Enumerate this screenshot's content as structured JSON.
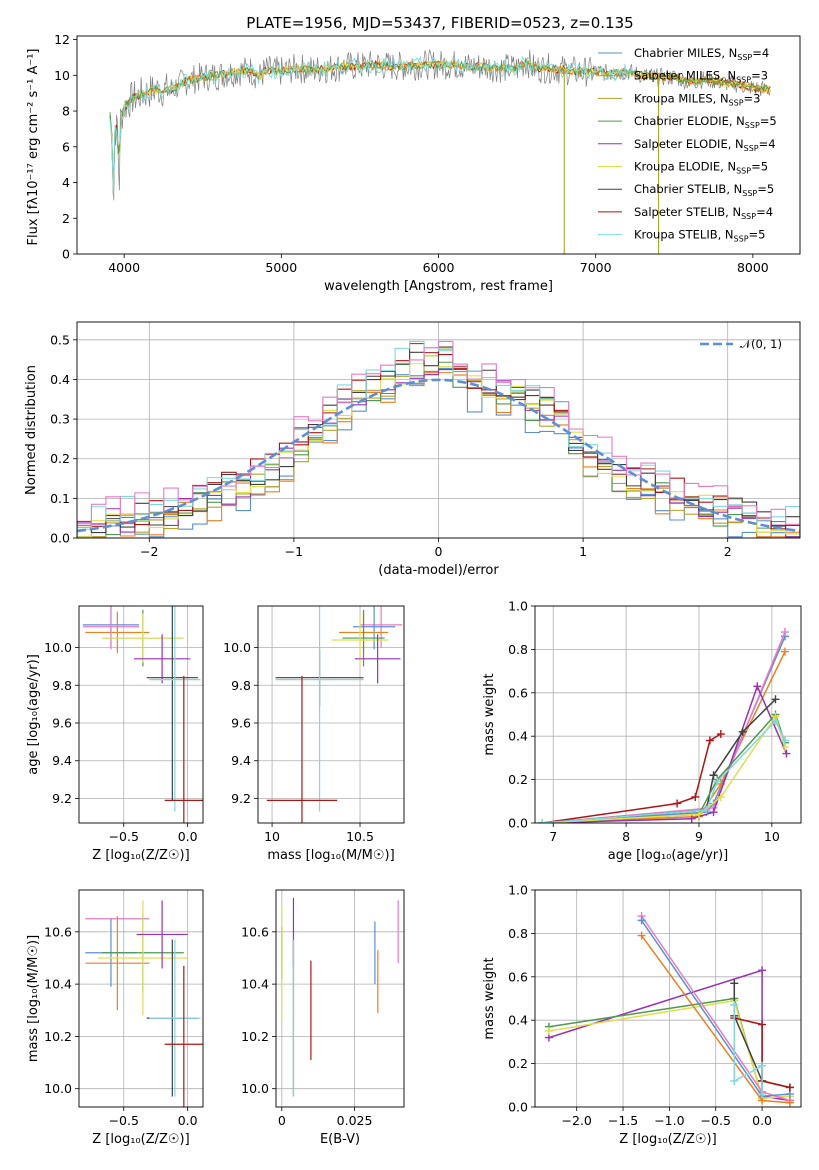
{
  "title": "PLATE=1956, MJD=53437, FIBERID=0523, z=0.135",
  "colors": {
    "chabrier_miles": "#5b8fd6",
    "salpeter_miles": "#f07f1e",
    "kroupa_miles": "#b5a32a",
    "chabrier_elodie": "#4e9a4e",
    "salpeter_elodie": "#9b30b5",
    "kroupa_elodie": "#dfe04a",
    "chabrier_stelib": "#404040",
    "salpeter_stelib": "#b01515",
    "kroupa_stelib": "#7fd9dc",
    "pink": "#e87bc4",
    "data": "#808080",
    "normal": "#5b8fd6"
  },
  "chart_data": [
    {
      "type": "line",
      "title": "PLATE=1956, MJD=53437, FIBERID=0523, z=0.135",
      "xlabel": "wavelength [Angstrom, rest frame]",
      "ylabel": "Flux [fλ10⁻¹⁷ erg cm⁻² s⁻¹ A⁻¹]",
      "xlim": [
        3700,
        8300
      ],
      "ylim": [
        0,
        12.2
      ],
      "xticks": [
        4000,
        5000,
        6000,
        7000,
        8000
      ],
      "yticks": [
        0,
        2,
        4,
        6,
        8,
        10,
        12
      ],
      "grid": false,
      "legend_position": "right",
      "data_range": [
        3910,
        8110
      ],
      "spectrum_anchors": {
        "x": [
          3910,
          3915,
          3925,
          3933,
          3940,
          3960,
          3968,
          3975,
          4000,
          4050,
          4100,
          4200,
          4300,
          4400,
          4500,
          4600,
          4700,
          4800,
          4861,
          4900,
          5000,
          5100,
          5200,
          5300,
          5400,
          5500,
          5600,
          5700,
          5800,
          5900,
          6000,
          6100,
          6200,
          6300,
          6400,
          6500,
          6563,
          6600,
          6700,
          6800,
          6900,
          7000,
          7100,
          7200,
          7300,
          7400,
          7500,
          7600,
          7700,
          7800,
          7900,
          8000,
          8100
        ],
        "y": [
          7.8,
          7.0,
          6.5,
          2.5,
          6.8,
          7.2,
          2.6,
          7.5,
          8.2,
          8.7,
          8.9,
          9.2,
          9.2,
          9.7,
          9.9,
          10.0,
          10.2,
          10.3,
          9.9,
          10.3,
          10.2,
          10.4,
          10.3,
          10.4,
          10.5,
          10.5,
          10.6,
          10.5,
          10.5,
          10.6,
          10.6,
          10.6,
          10.5,
          10.5,
          10.4,
          10.4,
          10.8,
          10.4,
          10.4,
          10.3,
          10.2,
          10.2,
          10.1,
          10.2,
          10.0,
          9.9,
          9.9,
          9.6,
          9.8,
          9.6,
          9.5,
          9.3,
          9.2
        ]
      },
      "spikes": [
        {
          "x": 6800,
          "y": 0
        },
        {
          "x": 7400,
          "y": 0
        }
      ],
      "legend": [
        {
          "label": "Chabrier MILES, N",
          "n": "4",
          "color_key": "chabrier_miles"
        },
        {
          "label": "Salpeter MILES, N",
          "n": "3",
          "color_key": "salpeter_miles"
        },
        {
          "label": "Kroupa MILES, N",
          "n": "3",
          "color_key": "kroupa_miles"
        },
        {
          "label": "Chabrier ELODIE, N",
          "n": "5",
          "color_key": "chabrier_elodie"
        },
        {
          "label": "Salpeter ELODIE, N",
          "n": "4",
          "color_key": "salpeter_elodie"
        },
        {
          "label": "Kroupa ELODIE, N",
          "n": "5",
          "color_key": "kroupa_elodie"
        },
        {
          "label": "Chabrier STELIB, N",
          "n": "5",
          "color_key": "chabrier_stelib"
        },
        {
          "label": "Salpeter STELIB, N",
          "n": "4",
          "color_key": "salpeter_stelib"
        },
        {
          "label": "Kroupa STELIB, N",
          "n": "5",
          "color_key": "kroupa_stelib"
        }
      ],
      "legend_subscript": "SSP"
    },
    {
      "type": "bar",
      "xlabel": "(data-model)/error",
      "ylabel": "Normed distribution",
      "xlim": [
        -2.5,
        2.5
      ],
      "ylim": [
        0,
        0.545
      ],
      "xticks": [
        -2,
        -1,
        0,
        1,
        2
      ],
      "xtick_labels": [
        "−2",
        "−1",
        "0",
        "1",
        "2"
      ],
      "yticks": [
        0.0,
        0.1,
        0.2,
        0.3,
        0.4,
        0.5
      ],
      "grid": true,
      "legend_position": "top-right",
      "legend": "𝒩(0, 1)",
      "bin_edges": [
        -2.5,
        -2.4,
        -2.3,
        -2.2,
        -2.1,
        -2.0,
        -1.9,
        -1.8,
        -1.7,
        -1.6,
        -1.5,
        -1.4,
        -1.3,
        -1.2,
        -1.1,
        -1.0,
        -0.9,
        -0.8,
        -0.7,
        -0.6,
        -0.5,
        -0.4,
        -0.3,
        -0.2,
        -0.1,
        0.0,
        0.1,
        0.2,
        0.3,
        0.4,
        0.5,
        0.6,
        0.7,
        0.8,
        0.9,
        1.0,
        1.1,
        1.2,
        1.3,
        1.4,
        1.5,
        1.6,
        1.7,
        1.8,
        1.9,
        2.0,
        2.1,
        2.2,
        2.3,
        2.4,
        2.5
      ],
      "reference_heights": [
        0.01,
        0.03,
        0.05,
        0.05,
        0.05,
        0.05,
        0.06,
        0.08,
        0.09,
        0.1,
        0.12,
        0.13,
        0.15,
        0.17,
        0.2,
        0.24,
        0.26,
        0.29,
        0.33,
        0.36,
        0.38,
        0.4,
        0.42,
        0.44,
        0.45,
        0.46,
        0.42,
        0.38,
        0.38,
        0.37,
        0.36,
        0.33,
        0.33,
        0.3,
        0.24,
        0.2,
        0.19,
        0.16,
        0.15,
        0.13,
        0.12,
        0.1,
        0.08,
        0.08,
        0.07,
        0.06,
        0.05,
        0.04,
        0.03,
        0.02
      ],
      "series_color_keys": [
        "chabrier_miles",
        "salpeter_miles",
        "kroupa_miles",
        "chabrier_elodie",
        "salpeter_elodie",
        "kroupa_elodie",
        "chabrier_stelib",
        "salpeter_stelib",
        "kroupa_stelib",
        "pink"
      ],
      "normal_curve": {
        "mu": 0,
        "sigma": 1,
        "color_key": "normal"
      }
    },
    {
      "type": "scatter",
      "xlabel": "Z [log₁₀(Z/Z☉)]",
      "ylabel": "age  [log₁₀(age/yr)]",
      "xlim": [
        -0.85,
        0.12
      ],
      "ylim": [
        9.07,
        10.22
      ],
      "xticks": [
        -0.5,
        0.0
      ],
      "xtick_labels": [
        "−0.5",
        "0.0"
      ],
      "yticks": [
        9.2,
        9.4,
        9.6,
        9.8,
        10.0
      ],
      "grid": true,
      "points": [
        {
          "x": -0.6,
          "y": 10.12,
          "xerr": 0.22,
          "yerr": 0.12,
          "c": "chabrier_miles"
        },
        {
          "x": -0.55,
          "y": 10.08,
          "xerr": 0.25,
          "yerr": 0.11,
          "c": "salpeter_miles"
        },
        {
          "x": -0.6,
          "y": 10.11,
          "xerr": 0.22,
          "yerr": 0.12,
          "c": "pink"
        },
        {
          "x": -0.35,
          "y": 10.05,
          "xerr": 0.3,
          "yerr": 0.15,
          "c": "chabrier_elodie"
        },
        {
          "x": -0.35,
          "y": 10.05,
          "xerr": 0.32,
          "yerr": 0.13,
          "c": "kroupa_elodie"
        },
        {
          "x": -0.2,
          "y": 9.94,
          "xerr": 0.22,
          "yerr": 0.13,
          "c": "salpeter_elodie"
        },
        {
          "x": -0.12,
          "y": 9.84,
          "xerr": 0.2,
          "yerr": 0.65,
          "c": "chabrier_stelib"
        },
        {
          "x": -0.1,
          "y": 9.83,
          "xerr": 0.2,
          "yerr": 0.7,
          "c": "kroupa_stelib"
        },
        {
          "x": -0.03,
          "y": 9.19,
          "xerr": 0.15,
          "yerr": 0.66,
          "c": "salpeter_stelib"
        }
      ]
    },
    {
      "type": "scatter",
      "xlabel": "mass [log₁₀(M/M☉)]",
      "ylabel": "",
      "xlim": [
        9.92,
        10.75
      ],
      "ylim": [
        9.07,
        10.22
      ],
      "xticks": [
        10.0,
        10.5
      ],
      "yticks": [
        9.2,
        9.4,
        9.6,
        9.8,
        10.0
      ],
      "grid": true,
      "points": [
        {
          "x": 10.62,
          "y": 10.12,
          "xerr": 0.12,
          "yerr": 0.12,
          "c": "pink"
        },
        {
          "x": 10.58,
          "y": 10.11,
          "xerr": 0.12,
          "yerr": 0.12,
          "c": "chabrier_miles"
        },
        {
          "x": 10.52,
          "y": 10.08,
          "xerr": 0.14,
          "yerr": 0.1,
          "c": "salpeter_miles"
        },
        {
          "x": 10.52,
          "y": 10.05,
          "xerr": 0.12,
          "yerr": 0.15,
          "c": "chabrier_elodie"
        },
        {
          "x": 10.5,
          "y": 10.04,
          "xerr": 0.16,
          "yerr": 0.13,
          "c": "kroupa_elodie"
        },
        {
          "x": 10.6,
          "y": 9.94,
          "xerr": 0.13,
          "yerr": 0.13,
          "c": "salpeter_elodie"
        },
        {
          "x": 10.27,
          "y": 9.84,
          "xerr": 0.25,
          "yerr": 0.15,
          "c": "chabrier_stelib"
        },
        {
          "x": 10.27,
          "y": 9.83,
          "xerr": 0.25,
          "yerr": 0.7,
          "c": "kroupa_stelib"
        },
        {
          "x": 10.17,
          "y": 9.19,
          "xerr": 0.2,
          "yerr": 0.66,
          "c": "salpeter_stelib"
        }
      ]
    },
    {
      "type": "line",
      "xlabel": "age  [log₁₀(age/yr)]",
      "ylabel": "mass weight",
      "xlim": [
        6.75,
        10.4
      ],
      "ylim": [
        0,
        1.0
      ],
      "xticks": [
        7,
        8,
        9,
        10
      ],
      "yticks": [
        0.0,
        0.2,
        0.4,
        0.6,
        0.8,
        1.0
      ],
      "grid": true,
      "series": [
        {
          "c": "salpeter_stelib",
          "x": [
            6.85,
            8.7,
            8.95,
            9.15,
            9.3
          ],
          "y": [
            0.0,
            0.09,
            0.12,
            0.38,
            0.41
          ]
        },
        {
          "c": "chabrier_miles",
          "x": [
            6.85,
            9.1,
            9.2,
            10.18
          ],
          "y": [
            0.0,
            0.05,
            0.09,
            0.86
          ]
        },
        {
          "c": "salpeter_miles",
          "x": [
            6.85,
            9.0,
            9.3,
            10.18
          ],
          "y": [
            0.0,
            0.03,
            0.18,
            0.79
          ]
        },
        {
          "c": "pink",
          "x": [
            6.85,
            9.2,
            10.18
          ],
          "y": [
            0.0,
            0.07,
            0.88
          ]
        },
        {
          "c": "salpeter_elodie",
          "x": [
            6.85,
            8.9,
            9.2,
            9.8,
            10.2
          ],
          "y": [
            0.0,
            0.02,
            0.05,
            0.63,
            0.32
          ]
        },
        {
          "c": "chabrier_stelib",
          "x": [
            6.85,
            9.1,
            9.2,
            9.6,
            10.05
          ],
          "y": [
            0.0,
            0.06,
            0.22,
            0.42,
            0.57
          ]
        },
        {
          "c": "chabrier_elodie",
          "x": [
            6.85,
            9.0,
            9.25,
            10.05,
            10.18
          ],
          "y": [
            0.0,
            0.04,
            0.2,
            0.5,
            0.37
          ]
        },
        {
          "c": "kroupa_elodie",
          "x": [
            6.85,
            9.0,
            9.3,
            10.05,
            10.18
          ],
          "y": [
            0.0,
            0.04,
            0.12,
            0.49,
            0.35
          ]
        },
        {
          "c": "kroupa_stelib",
          "x": [
            6.85,
            9.1,
            9.25,
            10.05,
            10.18
          ],
          "y": [
            0.0,
            0.06,
            0.19,
            0.47,
            0.38
          ]
        }
      ]
    },
    {
      "type": "scatter",
      "xlabel": "Z [log₁₀(Z/Z☉)]",
      "ylabel": "mass [log₁₀(M/M☉)]",
      "xlim": [
        -0.85,
        0.12
      ],
      "ylim": [
        9.93,
        10.76
      ],
      "xticks": [
        -0.5,
        0.0
      ],
      "xtick_labels": [
        "−0.5",
        "0.0"
      ],
      "yticks": [
        10.0,
        10.2,
        10.4,
        10.6
      ],
      "grid": true,
      "points": [
        {
          "x": -0.55,
          "y": 10.65,
          "xerr": 0.25,
          "yerr": 0.0,
          "c": "pink"
        },
        {
          "x": -0.6,
          "y": 10.52,
          "xerr": 0.2,
          "yerr": 0.13,
          "c": "chabrier_miles"
        },
        {
          "x": -0.55,
          "y": 10.48,
          "xerr": 0.25,
          "yerr": 0.18,
          "c": "salpeter_miles"
        },
        {
          "x": -0.35,
          "y": 10.52,
          "xerr": 0.32,
          "yerr": 0.15,
          "c": "chabrier_elodie"
        },
        {
          "x": -0.35,
          "y": 10.5,
          "xerr": 0.35,
          "yerr": 0.22,
          "c": "kroupa_elodie"
        },
        {
          "x": -0.2,
          "y": 10.59,
          "xerr": 0.2,
          "yerr": 0.13,
          "c": "salpeter_elodie"
        },
        {
          "x": -0.12,
          "y": 10.27,
          "xerr": 0.2,
          "yerr": 0.3,
          "c": "chabrier_stelib"
        },
        {
          "x": -0.1,
          "y": 10.27,
          "xerr": 0.2,
          "yerr": 0.3,
          "c": "kroupa_stelib"
        },
        {
          "x": -0.03,
          "y": 10.17,
          "xerr": 0.15,
          "yerr": 0.3,
          "c": "salpeter_stelib"
        }
      ]
    },
    {
      "type": "scatter",
      "xlabel": "E(B-V)",
      "ylabel": "",
      "xlim": [
        -0.002,
        0.042
      ],
      "ylim": [
        9.93,
        10.76
      ],
      "xticks": [
        0.0,
        0.025
      ],
      "yticks": [
        10.0,
        10.2,
        10.4,
        10.6
      ],
      "grid": true,
      "points": [
        {
          "x": 0.0,
          "y": 10.52,
          "xerr": 0,
          "yerr": 0.1,
          "c": "chabrier_elodie"
        },
        {
          "x": 0.0,
          "y": 10.48,
          "xerr": 0,
          "yerr": 0.22,
          "c": "kroupa_elodie"
        },
        {
          "x": 0.004,
          "y": 10.6,
          "xerr": 0,
          "yerr": 0.13,
          "c": "salpeter_elodie"
        },
        {
          "x": 0.004,
          "y": 10.27,
          "xerr": 0,
          "yerr": 0.3,
          "c": "chabrier_stelib"
        },
        {
          "x": 0.004,
          "y": 10.27,
          "xerr": 0,
          "yerr": 0.3,
          "c": "kroupa_stelib"
        },
        {
          "x": 0.01,
          "y": 10.3,
          "xerr": 0,
          "yerr": 0.19,
          "c": "salpeter_stelib"
        },
        {
          "x": 0.032,
          "y": 10.52,
          "xerr": 0,
          "yerr": 0.12,
          "c": "chabrier_miles"
        },
        {
          "x": 0.033,
          "y": 10.41,
          "xerr": 0,
          "yerr": 0.12,
          "c": "salpeter_miles"
        },
        {
          "x": 0.04,
          "y": 10.6,
          "xerr": 0,
          "yerr": 0.12,
          "c": "pink"
        }
      ]
    },
    {
      "type": "line",
      "xlabel": "Z [log₁₀(Z/Z☉)]",
      "ylabel": "mass weight",
      "xlim": [
        -2.45,
        0.42
      ],
      "ylim": [
        0,
        1.0
      ],
      "xticks": [
        -2.0,
        -1.5,
        -1.0,
        -0.5,
        0.0
      ],
      "xtick_labels": [
        "−2.0",
        "−1.5",
        "−1.0",
        "−0.5",
        "0.0"
      ],
      "yticks": [
        0.0,
        0.2,
        0.4,
        0.6,
        0.8,
        1.0
      ],
      "grid": true,
      "series": [
        {
          "c": "salpeter_elodie",
          "x": [
            -2.3,
            0.0,
            0.0,
            0.3
          ],
          "y": [
            0.32,
            0.63,
            0.05,
            0.03
          ]
        },
        {
          "c": "chabrier_elodie",
          "x": [
            -2.3,
            -0.3,
            0.0,
            0.3
          ],
          "y": [
            0.37,
            0.5,
            0.04,
            0.05
          ]
        },
        {
          "c": "kroupa_elodie",
          "x": [
            -2.3,
            -0.3,
            0.0,
            0.3
          ],
          "y": [
            0.35,
            0.49,
            0.04,
            0.05
          ]
        },
        {
          "c": "pink",
          "x": [
            -1.3,
            0.0,
            0.3
          ],
          "y": [
            0.88,
            0.07,
            0.03
          ]
        },
        {
          "c": "chabrier_miles",
          "x": [
            -1.3,
            0.0,
            0.3
          ],
          "y": [
            0.86,
            0.05,
            0.06
          ]
        },
        {
          "c": "salpeter_miles",
          "x": [
            -1.3,
            0.0,
            0.3
          ],
          "y": [
            0.79,
            0.03,
            0.02
          ]
        },
        {
          "c": "chabrier_stelib",
          "x": [
            -0.3,
            -0.3,
            0.0,
            0.3
          ],
          "y": [
            0.57,
            0.42,
            0.12,
            0.09
          ]
        },
        {
          "c": "salpeter_stelib",
          "x": [
            -0.3,
            0.0,
            0.0,
            0.3
          ],
          "y": [
            0.41,
            0.38,
            0.12,
            0.09
          ]
        },
        {
          "c": "kroupa_stelib",
          "x": [
            -0.3,
            -0.3,
            0.0,
            0.0
          ],
          "y": [
            0.47,
            0.12,
            0.19,
            0.06
          ]
        }
      ]
    }
  ]
}
